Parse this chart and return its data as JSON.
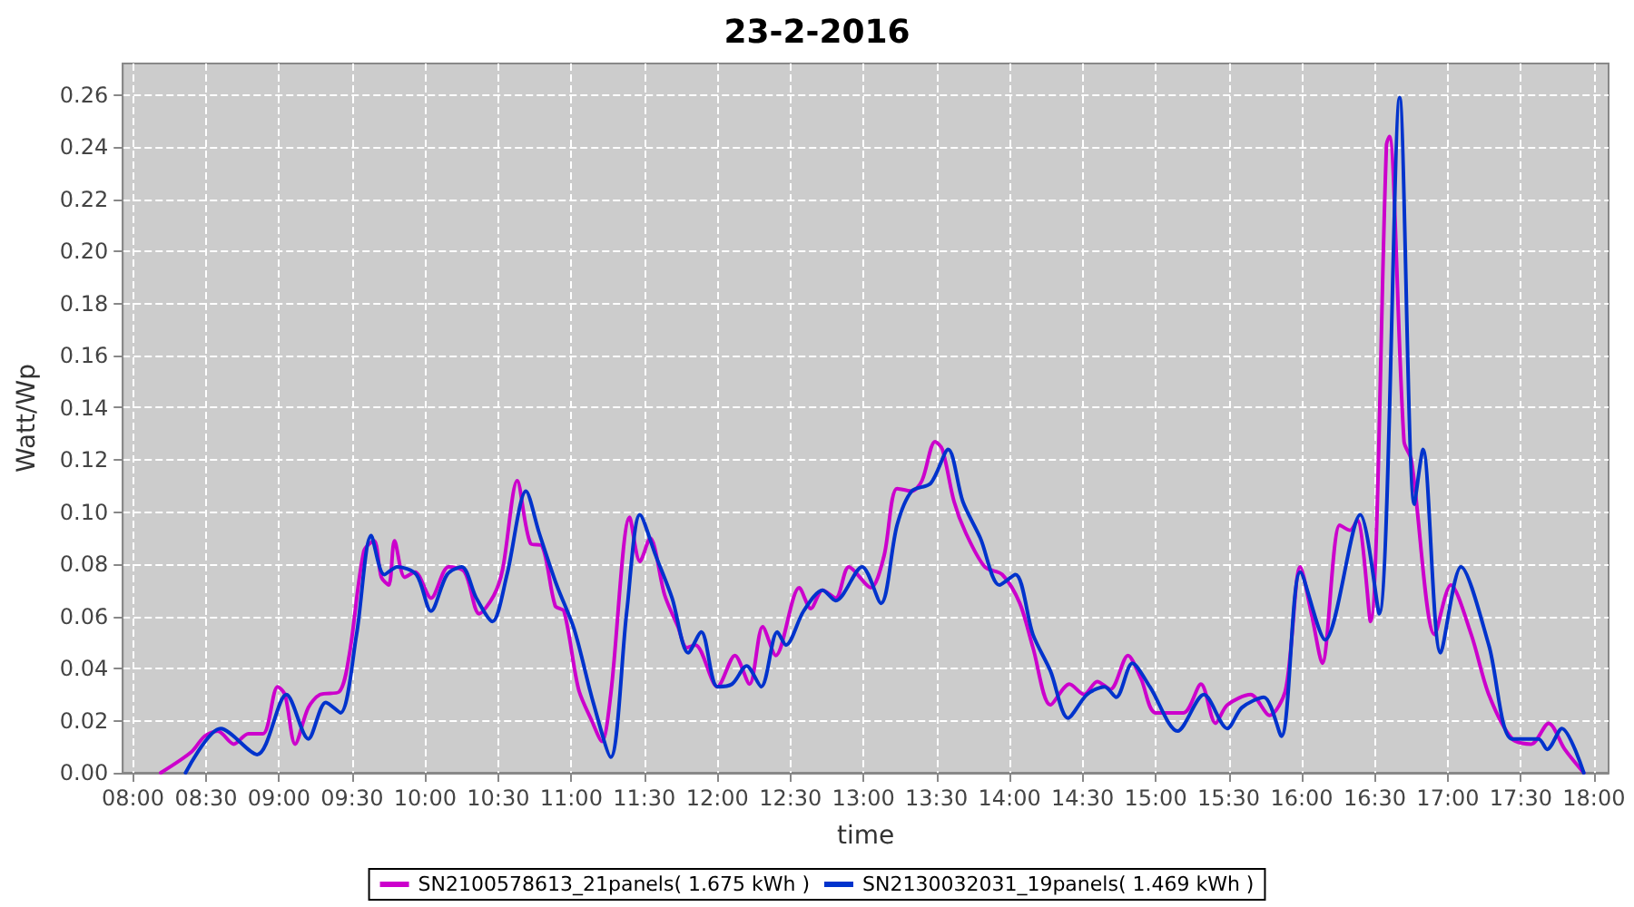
{
  "chart_data": {
    "type": "line",
    "title": "23-2-2016",
    "xlabel": "time",
    "ylabel": "Watt/Wp",
    "xlim": [
      7.93,
      18.1
    ],
    "ylim": [
      0,
      0.272
    ],
    "xticks": [
      {
        "value": 8,
        "label": "08:00"
      },
      {
        "value": 8.5,
        "label": "08:30"
      },
      {
        "value": 9,
        "label": "09:00"
      },
      {
        "value": 9.5,
        "label": "09:30"
      },
      {
        "value": 10,
        "label": "10:00"
      },
      {
        "value": 10.5,
        "label": "10:30"
      },
      {
        "value": 11,
        "label": "11:00"
      },
      {
        "value": 11.5,
        "label": "11:30"
      },
      {
        "value": 12,
        "label": "12:00"
      },
      {
        "value": 12.5,
        "label": "12:30"
      },
      {
        "value": 13,
        "label": "13:00"
      },
      {
        "value": 13.5,
        "label": "13:30"
      },
      {
        "value": 14,
        "label": "14:00"
      },
      {
        "value": 14.5,
        "label": "14:30"
      },
      {
        "value": 15,
        "label": "15:00"
      },
      {
        "value": 15.5,
        "label": "15:30"
      },
      {
        "value": 16,
        "label": "16:00"
      },
      {
        "value": 16.5,
        "label": "16:30"
      },
      {
        "value": 17,
        "label": "17:00"
      },
      {
        "value": 17.5,
        "label": "17:30"
      },
      {
        "value": 18,
        "label": "18:00"
      }
    ],
    "yticks": [
      {
        "value": 0,
        "label": "0.00"
      },
      {
        "value": 0.02,
        "label": "0.02"
      },
      {
        "value": 0.04,
        "label": "0.04"
      },
      {
        "value": 0.06,
        "label": "0.06"
      },
      {
        "value": 0.08,
        "label": "0.08"
      },
      {
        "value": 0.1,
        "label": "0.10"
      },
      {
        "value": 0.12,
        "label": "0.12"
      },
      {
        "value": 0.14,
        "label": "0.14"
      },
      {
        "value": 0.16,
        "label": "0.16"
      },
      {
        "value": 0.18,
        "label": "0.18"
      },
      {
        "value": 0.2,
        "label": "0.20"
      },
      {
        "value": 0.22,
        "label": "0.22"
      },
      {
        "value": 0.24,
        "label": "0.24"
      },
      {
        "value": 0.26,
        "label": "0.26"
      }
    ],
    "grid": true,
    "legend": "bottom",
    "marker": "none",
    "line_style": "solid",
    "series": [
      {
        "name": "SN2100578613_21panels( 1.675 kWh )",
        "color": "#cc00cc",
        "x": [
          8.19,
          8.4,
          8.49,
          8.58,
          8.69,
          8.79,
          8.89,
          8.99,
          9.04,
          9.11,
          9.2,
          9.28,
          9.41,
          9.48,
          9.58,
          9.65,
          9.7,
          9.75,
          9.79,
          9.86,
          9.93,
          10.04,
          10.16,
          10.27,
          10.37,
          10.47,
          10.53,
          10.63,
          10.72,
          10.8,
          10.89,
          10.95,
          11.05,
          11.14,
          11.21,
          11.27,
          11.4,
          11.47,
          11.54,
          11.64,
          11.73,
          11.79,
          11.85,
          12.0,
          12.12,
          12.22,
          12.31,
          12.4,
          12.56,
          12.64,
          12.72,
          12.81,
          12.9,
          13.05,
          13.14,
          13.23,
          13.33,
          13.4,
          13.49,
          13.54,
          13.62,
          13.7,
          13.83,
          13.95,
          14.07,
          14.16,
          14.28,
          14.41,
          14.51,
          14.6,
          14.69,
          14.81,
          14.9,
          15.0,
          15.19,
          15.31,
          15.41,
          15.49,
          15.65,
          15.78,
          15.89,
          15.99,
          16.07,
          16.14,
          16.26,
          16.33,
          16.38,
          16.47,
          16.58,
          16.6,
          16.7,
          16.75,
          16.91,
          17.02,
          17.16,
          17.28,
          17.44,
          17.57,
          17.69,
          17.8,
          17.93
        ],
        "values": [
          0.0,
          0.008,
          0.014,
          0.016,
          0.011,
          0.015,
          0.015,
          0.033,
          0.03,
          0.011,
          0.025,
          0.03,
          0.031,
          0.045,
          0.085,
          0.089,
          0.075,
          0.072,
          0.089,
          0.075,
          0.077,
          0.067,
          0.079,
          0.077,
          0.061,
          0.068,
          0.078,
          0.112,
          0.088,
          0.087,
          0.064,
          0.062,
          0.032,
          0.02,
          0.012,
          0.03,
          0.098,
          0.081,
          0.09,
          0.068,
          0.056,
          0.048,
          0.049,
          0.033,
          0.045,
          0.034,
          0.056,
          0.045,
          0.071,
          0.063,
          0.07,
          0.067,
          0.079,
          0.071,
          0.083,
          0.109,
          0.108,
          0.112,
          0.127,
          0.124,
          0.104,
          0.092,
          0.079,
          0.076,
          0.065,
          0.048,
          0.026,
          0.034,
          0.03,
          0.035,
          0.032,
          0.045,
          0.036,
          0.023,
          0.023,
          0.034,
          0.019,
          0.026,
          0.03,
          0.022,
          0.032,
          0.079,
          0.06,
          0.042,
          0.095,
          0.093,
          0.097,
          0.058,
          0.241,
          0.244,
          0.127,
          0.12,
          0.053,
          0.072,
          0.053,
          0.03,
          0.013,
          0.011,
          0.019,
          0.009,
          0.0
        ]
      },
      {
        "name": "SN2130032031_19panels( 1.469 kWh )",
        "color": "#0033cc",
        "x": [
          8.36,
          8.6,
          8.85,
          9.05,
          9.2,
          9.32,
          9.42,
          9.53,
          9.63,
          9.72,
          9.81,
          9.94,
          10.04,
          10.15,
          10.25,
          10.35,
          10.46,
          10.56,
          10.69,
          10.78,
          10.9,
          11.02,
          11.15,
          11.27,
          11.38,
          11.47,
          11.58,
          11.69,
          11.8,
          11.89,
          12.0,
          12.1,
          12.2,
          12.3,
          12.41,
          12.47,
          12.59,
          12.72,
          12.81,
          12.99,
          13.12,
          13.23,
          13.33,
          13.46,
          13.58,
          13.68,
          13.8,
          13.93,
          14.04,
          14.16,
          14.28,
          14.4,
          14.53,
          14.65,
          14.73,
          14.84,
          14.96,
          15.15,
          15.33,
          15.49,
          15.59,
          15.74,
          15.86,
          15.99,
          16.16,
          16.4,
          16.53,
          16.67,
          16.77,
          16.83,
          16.95,
          17.09,
          17.28,
          17.44,
          17.62,
          17.68,
          17.78,
          17.93
        ],
        "values": [
          0.0,
          0.017,
          0.007,
          0.03,
          0.013,
          0.027,
          0.023,
          0.053,
          0.091,
          0.076,
          0.079,
          0.076,
          0.062,
          0.076,
          0.079,
          0.067,
          0.058,
          0.076,
          0.108,
          0.092,
          0.072,
          0.055,
          0.027,
          0.006,
          0.062,
          0.099,
          0.083,
          0.067,
          0.046,
          0.054,
          0.033,
          0.034,
          0.041,
          0.033,
          0.054,
          0.049,
          0.062,
          0.07,
          0.066,
          0.079,
          0.065,
          0.095,
          0.108,
          0.111,
          0.124,
          0.104,
          0.09,
          0.072,
          0.076,
          0.053,
          0.039,
          0.021,
          0.03,
          0.033,
          0.029,
          0.042,
          0.033,
          0.016,
          0.03,
          0.017,
          0.025,
          0.029,
          0.014,
          0.077,
          0.051,
          0.099,
          0.061,
          0.259,
          0.103,
          0.124,
          0.046,
          0.079,
          0.049,
          0.013,
          0.013,
          0.009,
          0.017,
          0.0
        ]
      }
    ]
  }
}
